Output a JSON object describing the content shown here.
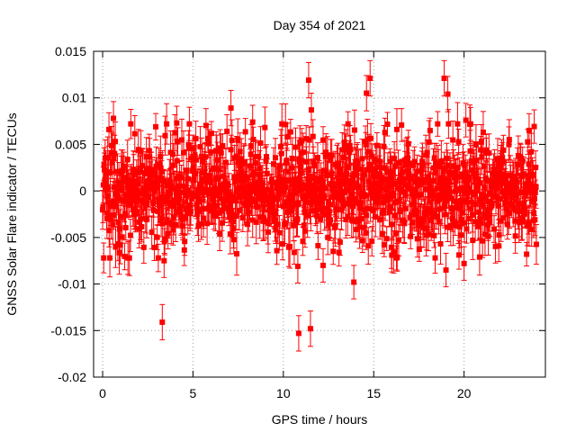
{
  "chart_data": {
    "type": "scatter",
    "title": "Day 354 of 2021",
    "xlabel": "GPS time / hours",
    "ylabel": "GNSS Solar Flare indicator / TECUs",
    "xlim": [
      -0.5,
      24.5
    ],
    "ylim": [
      -0.02,
      0.015
    ],
    "x_ticks": [
      0,
      5,
      10,
      15,
      20
    ],
    "x_tick_labels": [
      "0",
      "5",
      "10",
      "15",
      "20"
    ],
    "y_ticks": [
      -0.02,
      -0.015,
      -0.01,
      -0.005,
      0,
      0.005,
      0.01,
      0.015
    ],
    "y_tick_labels": [
      "-0.02",
      "-0.015",
      "-0.01",
      "-0.005",
      "0",
      "0.005",
      "0.01",
      "0.015"
    ],
    "grid": true,
    "marker": "square",
    "error_bars": true,
    "series": [
      {
        "name": "GNSS Solar Flare indicator",
        "color": "#ff0000",
        "band": {
          "x_start": 0.0,
          "x_end": 24.0,
          "step_hours": 0.02,
          "typical_spread": 0.0028,
          "typical_error": 0.0018
        },
        "highlight_points": [
          {
            "x": 0.35,
            "y": 0.0066,
            "err": 0.0018
          },
          {
            "x": 0.6,
            "y": 0.0078,
            "err": 0.0018
          },
          {
            "x": 3.3,
            "y": -0.0141,
            "err": 0.0019
          },
          {
            "x": 3.4,
            "y": -0.0075,
            "err": 0.0018
          },
          {
            "x": 4.1,
            "y": 0.0073,
            "err": 0.0018
          },
          {
            "x": 7.1,
            "y": 0.0089,
            "err": 0.0019
          },
          {
            "x": 8.3,
            "y": 0.0074,
            "err": 0.0018
          },
          {
            "x": 10.8,
            "y": -0.0081,
            "err": 0.0018
          },
          {
            "x": 10.85,
            "y": -0.0153,
            "err": 0.0019
          },
          {
            "x": 11.4,
            "y": 0.0119,
            "err": 0.0019
          },
          {
            "x": 11.5,
            "y": -0.0148,
            "err": 0.0019
          },
          {
            "x": 11.55,
            "y": 0.0087,
            "err": 0.0018
          },
          {
            "x": 12.2,
            "y": -0.008,
            "err": 0.0018
          },
          {
            "x": 13.9,
            "y": -0.0098,
            "err": 0.0018
          },
          {
            "x": 14.6,
            "y": 0.0105,
            "err": 0.0019
          },
          {
            "x": 14.8,
            "y": 0.0121,
            "err": 0.0019
          },
          {
            "x": 16.0,
            "y": -0.0069,
            "err": 0.0018
          },
          {
            "x": 18.9,
            "y": 0.0121,
            "err": 0.0019
          },
          {
            "x": 19.1,
            "y": 0.0104,
            "err": 0.0019
          },
          {
            "x": 19.0,
            "y": -0.0085,
            "err": 0.0018
          },
          {
            "x": 20.0,
            "y": -0.0078,
            "err": 0.0018
          },
          {
            "x": 20.1,
            "y": 0.0076,
            "err": 0.0018
          },
          {
            "x": 23.6,
            "y": 0.0065,
            "err": 0.0018
          }
        ]
      }
    ]
  }
}
